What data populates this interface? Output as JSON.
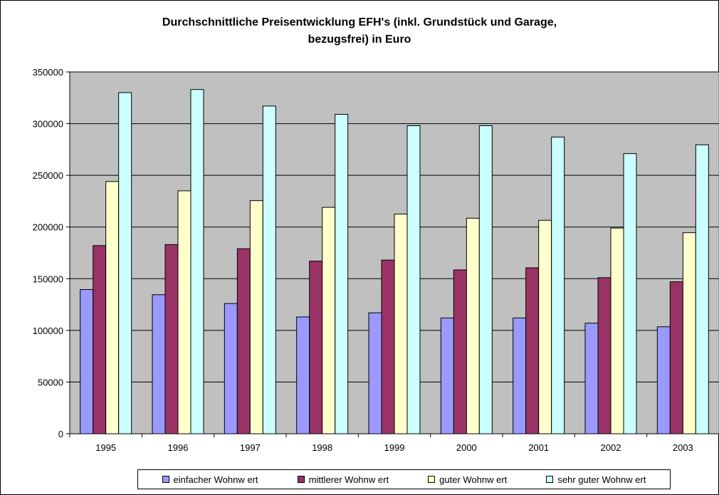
{
  "chart_data": {
    "type": "bar",
    "title_line1": "Durchschnittliche Preisentwicklung EFH's (inkl. Grundstück und Garage,",
    "title_line2": "bezugsfrei) in Euro",
    "categories": [
      "1995",
      "1996",
      "1997",
      "1998",
      "1999",
      "2000",
      "2001",
      "2002",
      "2003"
    ],
    "ylim": [
      0,
      350000
    ],
    "yticks": [
      0,
      50000,
      100000,
      150000,
      200000,
      250000,
      300000,
      350000
    ],
    "grid": true,
    "legend_position": "bottom",
    "plot_background": "#c0c0c0",
    "series": [
      {
        "name": "einfacher Wohnw ert",
        "color": "#9999ff",
        "values": [
          139500,
          134500,
          126000,
          113000,
          117000,
          112000,
          112000,
          107000,
          103500
        ]
      },
      {
        "name": "mittlerer Wohnw ert",
        "color": "#993366",
        "values": [
          182000,
          183000,
          179000,
          167000,
          168000,
          158500,
          160500,
          151000,
          147000
        ]
      },
      {
        "name": "guter Wohnw ert",
        "color": "#ffffcc",
        "values": [
          244000,
          235000,
          225500,
          219000,
          212500,
          208500,
          206500,
          199000,
          194500
        ]
      },
      {
        "name": "sehr guter Wohnw ert",
        "color": "#ccffff",
        "values": [
          330000,
          333000,
          317000,
          309000,
          298000,
          298000,
          287000,
          271000,
          279500
        ]
      }
    ]
  }
}
